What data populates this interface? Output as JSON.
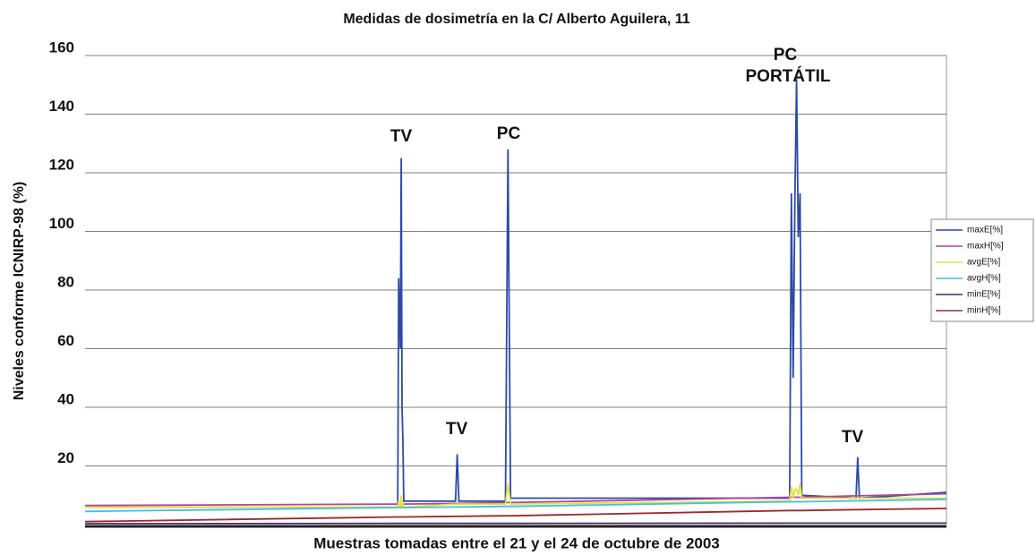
{
  "chart_data": {
    "type": "line",
    "title": "Medidas de dosimetría en la C/ Alberto Aguilera, 11",
    "xlabel": "Muestras tomadas entre el 21 y el 24 de octubre de 2003",
    "ylabel": "Niveles conforme ICNIRP-98 (%)",
    "x": [
      0,
      363,
      364,
      366,
      367,
      368,
      369,
      370,
      430,
      432,
      434,
      488,
      491,
      494,
      818,
      820,
      822,
      824,
      826,
      828,
      830,
      832,
      895,
      897,
      899,
      1000
    ],
    "xlim": [
      0,
      1000
    ],
    "ylim": [
      0,
      160
    ],
    "yticks": [
      20,
      40,
      60,
      80,
      100,
      120,
      140,
      160
    ],
    "grid": true,
    "legend": "right",
    "series": [
      {
        "name": "maxE[%]",
        "color": "#2c4aa8",
        "values": [
          6,
          6,
          84,
          60,
          125,
          40,
          28,
          8,
          8,
          24,
          8,
          8,
          128,
          9,
          9,
          113,
          50,
          110,
          152,
          98,
          113,
          10,
          9,
          23,
          9,
          11
        ]
      },
      {
        "name": "maxH[%]",
        "color": "#b0449a",
        "values": [
          6.5,
          7,
          7,
          7,
          7,
          7,
          7,
          7,
          7.2,
          7.2,
          7.2,
          7.5,
          7.5,
          7.5,
          9.3,
          9.3,
          9.3,
          9.3,
          9.3,
          9.3,
          9.3,
          9.3,
          9.8,
          9.8,
          9.8,
          10.5
        ]
      },
      {
        "name": "avgE[%]",
        "color": "#e8e040",
        "values": [
          6,
          6,
          8,
          6,
          10,
          6,
          7,
          6,
          7,
          7,
          7,
          7,
          14,
          7,
          8,
          13,
          9,
          12,
          12,
          10,
          14,
          9,
          9,
          9,
          9,
          9
        ]
      },
      {
        "name": "avgH[%]",
        "color": "#40c0e0",
        "values": [
          4.5,
          5.8,
          5.8,
          5.8,
          5.8,
          5.8,
          5.8,
          5.8,
          6,
          6,
          6,
          6.2,
          6.2,
          6.2,
          7.8,
          7.8,
          7.8,
          7.8,
          7.8,
          7.8,
          7.8,
          7.8,
          8.1,
          8.1,
          8.1,
          8.6
        ]
      },
      {
        "name": "minE[%]",
        "color": "#4a2a6a",
        "values": [
          0.3,
          0.4,
          0.4,
          0.4,
          0.4,
          0.4,
          0.4,
          0.4,
          0.4,
          0.4,
          0.4,
          0.4,
          0.4,
          0.4,
          0.5,
          0.5,
          0.5,
          0.5,
          0.5,
          0.5,
          0.5,
          0.5,
          0.5,
          0.5,
          0.5,
          0.5
        ]
      },
      {
        "name": "minH[%]",
        "color": "#9a2a30",
        "values": [
          1,
          2.6,
          2.6,
          2.6,
          2.6,
          2.6,
          2.6,
          2.6,
          2.8,
          2.8,
          2.8,
          3,
          3,
          3,
          4.8,
          4.8,
          4.8,
          4.8,
          4.8,
          4.8,
          4.8,
          4.8,
          5.1,
          5.1,
          5.1,
          5.5
        ]
      }
    ],
    "annotations": [
      "TV",
      "TV",
      "PC",
      "PC",
      "PORTÁTIL",
      "TV"
    ]
  }
}
